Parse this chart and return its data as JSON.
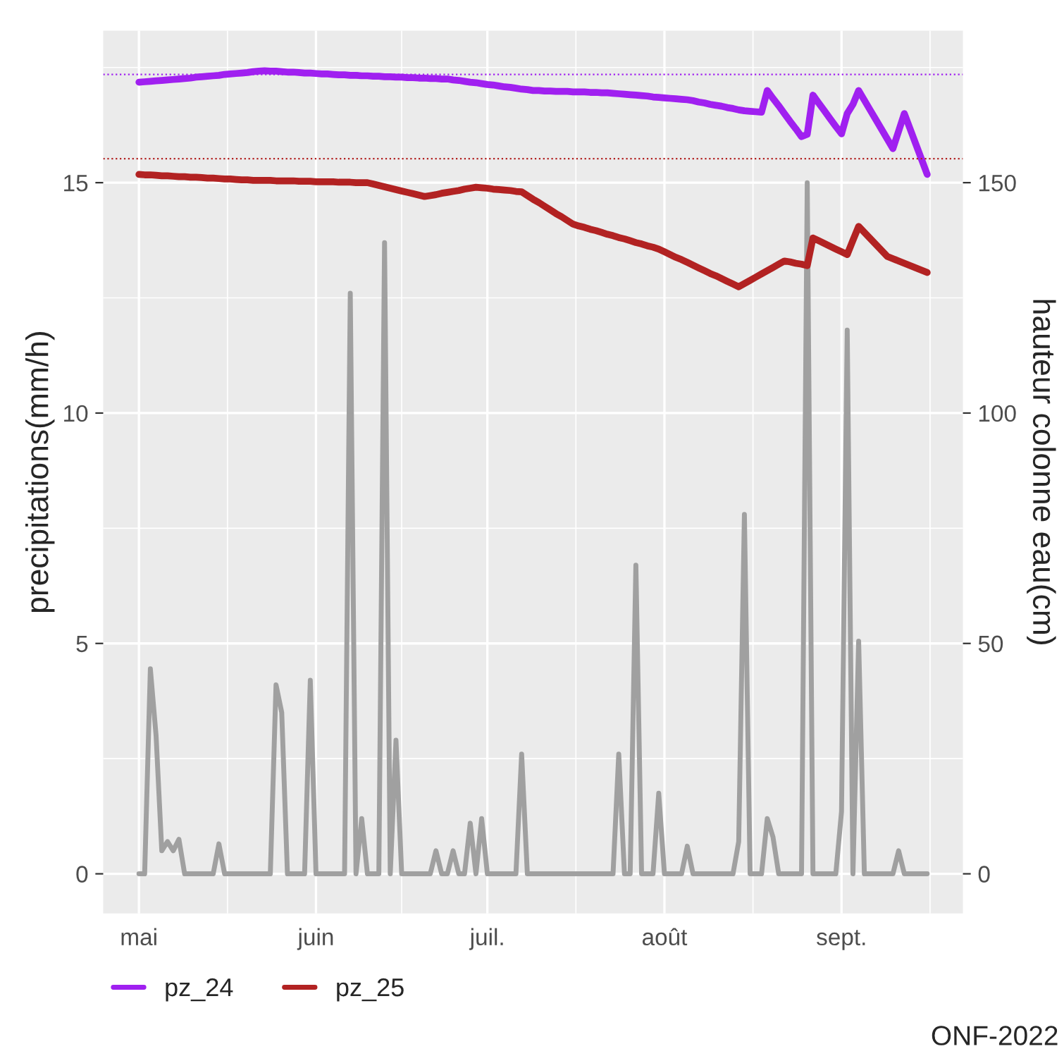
{
  "chart_data": {
    "type": "line",
    "ylabel": "precipitations(mm/h)",
    "y2label": "hauteur colonne eau(cm)",
    "categories": [
      "mai",
      null,
      null,
      null,
      null,
      null,
      null,
      null,
      null,
      null,
      null,
      null,
      null,
      null,
      null,
      null,
      null,
      null,
      null,
      null,
      null,
      null,
      null,
      null,
      null,
      null,
      null,
      null,
      null,
      null,
      null,
      "juin",
      null,
      null,
      null,
      null,
      null,
      null,
      null,
      null,
      null,
      null,
      null,
      null,
      null,
      null,
      null,
      null,
      null,
      null,
      null,
      null,
      null,
      null,
      null,
      null,
      null,
      null,
      null,
      null,
      null,
      "juil.",
      null,
      null,
      null,
      null,
      null,
      null,
      null,
      null,
      null,
      null,
      null,
      null,
      null,
      null,
      null,
      null,
      null,
      null,
      null,
      null,
      null,
      null,
      null,
      null,
      null,
      null,
      null,
      null,
      null,
      null,
      "août",
      null,
      null,
      null,
      null,
      null,
      null,
      null,
      null,
      null,
      null,
      null,
      null,
      null,
      null,
      null,
      null,
      null,
      null,
      null,
      null,
      null,
      null,
      null,
      null,
      null,
      null,
      null,
      null,
      null,
      null,
      "sept.",
      null,
      null,
      null,
      null,
      null,
      null,
      null,
      null,
      null,
      null,
      null,
      null,
      null,
      null,
      null
    ],
    "ylim": [
      -0.86,
      18.3
    ],
    "yticks": [
      0,
      5,
      10,
      15
    ],
    "y2lim": [
      -8.6,
      183
    ],
    "y2ticks": [
      0,
      50,
      100,
      150
    ],
    "grid": true,
    "legend": "bottom",
    "line_style": "solid",
    "series": [
      {
        "color": "#a0a0a0",
        "values": [
          0,
          0,
          4.45,
          3.0,
          0.5,
          0.7,
          0.5,
          0.75,
          0,
          0,
          0,
          0,
          0,
          0,
          0.65,
          0,
          0,
          0,
          0,
          0,
          0,
          0,
          0,
          0,
          4.1,
          3.5,
          0,
          0,
          0,
          0,
          4.2,
          0,
          0,
          0,
          0,
          0,
          0,
          12.6,
          0,
          1.2,
          0,
          0,
          0,
          13.7,
          0,
          2.9,
          0,
          0,
          0,
          0,
          0,
          0,
          0.5,
          0,
          0,
          0.5,
          0,
          0,
          1.1,
          0,
          1.2,
          0,
          0,
          0,
          0,
          0,
          0,
          2.6,
          0,
          0,
          0,
          0,
          0,
          0,
          0,
          0,
          0,
          0,
          0,
          0,
          0,
          0,
          0,
          0,
          2.6,
          0,
          0,
          6.7,
          0,
          0,
          0,
          1.75,
          0,
          0,
          0,
          0,
          0.6,
          0,
          0,
          0,
          0,
          0,
          0,
          0,
          0,
          0.7,
          7.8,
          0,
          0,
          0,
          1.2,
          0.8,
          0,
          0,
          0,
          0,
          0,
          15.0,
          0,
          0,
          0,
          0,
          0,
          1.35,
          11.8,
          0,
          5.05,
          0,
          0,
          0,
          0,
          0,
          0,
          0.5,
          0,
          0,
          0,
          0,
          0
        ]
      },
      {
        "name": "pz_24",
        "color": "#a020f0",
        "axis": "y2",
        "values": [
          171.8,
          171.9,
          172.0,
          172.1,
          172.2,
          172.3,
          172.4,
          172.5,
          172.6,
          172.7,
          172.9,
          173.0,
          173.1,
          173.2,
          173.3,
          173.5,
          173.6,
          173.7,
          173.8,
          173.9,
          174.1,
          174.2,
          174.3,
          174.2,
          174.2,
          174.1,
          174.0,
          174.0,
          173.9,
          173.8,
          173.8,
          173.7,
          173.6,
          173.6,
          173.5,
          173.4,
          173.4,
          173.3,
          173.3,
          173.2,
          173.2,
          173.1,
          173.1,
          173.0,
          173.0,
          172.9,
          172.9,
          172.8,
          172.8,
          172.7,
          172.7,
          172.6,
          172.6,
          172.5,
          172.5,
          172.3,
          172.2,
          172.0,
          171.8,
          171.7,
          171.5,
          171.3,
          171.2,
          171.0,
          170.8,
          170.7,
          170.5,
          170.3,
          170.2,
          170.0,
          170.0,
          169.9,
          169.9,
          169.8,
          169.8,
          169.8,
          169.7,
          169.7,
          169.7,
          169.6,
          169.6,
          169.5,
          169.5,
          169.4,
          169.3,
          169.2,
          169.1,
          169.0,
          168.9,
          168.8,
          168.6,
          168.5,
          168.4,
          168.3,
          168.2,
          168.1,
          168.0,
          167.8,
          167.5,
          167.3,
          167.0,
          166.8,
          166.6,
          166.3,
          166.1,
          165.8,
          165.6,
          165.5,
          165.4,
          165.3,
          170.0,
          168.3,
          166.7,
          165.0,
          163.3,
          161.7,
          160.0,
          160.5,
          169.0,
          167.3,
          165.6,
          163.9,
          162.2,
          160.6,
          165.0,
          167.0,
          170.0,
          167.9,
          165.8,
          163.7,
          161.6,
          159.5,
          157.4,
          161.2,
          165.0,
          161.7,
          158.4,
          155.1,
          151.8
        ]
      },
      {
        "name": "pz_25",
        "color": "#b22222",
        "axis": "y2",
        "values": [
          151.8,
          151.7,
          151.7,
          151.6,
          151.5,
          151.5,
          151.4,
          151.3,
          151.3,
          151.2,
          151.2,
          151.1,
          151.0,
          151.0,
          150.9,
          150.8,
          150.8,
          150.7,
          150.6,
          150.6,
          150.5,
          150.5,
          150.5,
          150.5,
          150.4,
          150.4,
          150.4,
          150.4,
          150.3,
          150.3,
          150.3,
          150.2,
          150.2,
          150.2,
          150.2,
          150.1,
          150.1,
          150.1,
          150.0,
          150.0,
          150.0,
          149.7,
          149.4,
          149.1,
          148.8,
          148.5,
          148.2,
          147.9,
          147.6,
          147.3,
          147.0,
          147.2,
          147.4,
          147.7,
          147.9,
          148.1,
          148.3,
          148.6,
          148.8,
          149.0,
          148.9,
          148.8,
          148.6,
          148.5,
          148.4,
          148.3,
          148.1,
          148.0,
          147.2,
          146.4,
          145.7,
          144.9,
          144.1,
          143.3,
          142.6,
          141.8,
          141.0,
          140.6,
          140.3,
          139.9,
          139.6,
          139.2,
          138.8,
          138.5,
          138.1,
          137.8,
          137.4,
          137.0,
          136.7,
          136.3,
          136.0,
          135.6,
          135.0,
          134.4,
          133.8,
          133.3,
          132.7,
          132.1,
          131.5,
          130.9,
          130.3,
          129.8,
          129.2,
          128.6,
          128.0,
          127.4,
          128.1,
          128.8,
          129.5,
          130.2,
          130.9,
          131.6,
          132.3,
          133.0,
          132.8,
          132.5,
          132.3,
          132.0,
          138.0,
          137.4,
          136.8,
          136.2,
          135.6,
          135.0,
          134.4,
          137.5,
          140.5,
          139.2,
          137.9,
          136.6,
          135.3,
          134.0,
          133.5,
          133.0,
          132.5,
          132.0,
          131.5,
          131.0,
          130.5
        ]
      }
    ],
    "ref_lines": [
      {
        "axis": "y2",
        "value": 173.5,
        "color": "#a020f0",
        "line_style": "dotted"
      },
      {
        "axis": "y2",
        "value": 155.2,
        "color": "#b22222",
        "line_style": "dotted"
      }
    ],
    "annotations": [
      "ONF-2022"
    ]
  }
}
